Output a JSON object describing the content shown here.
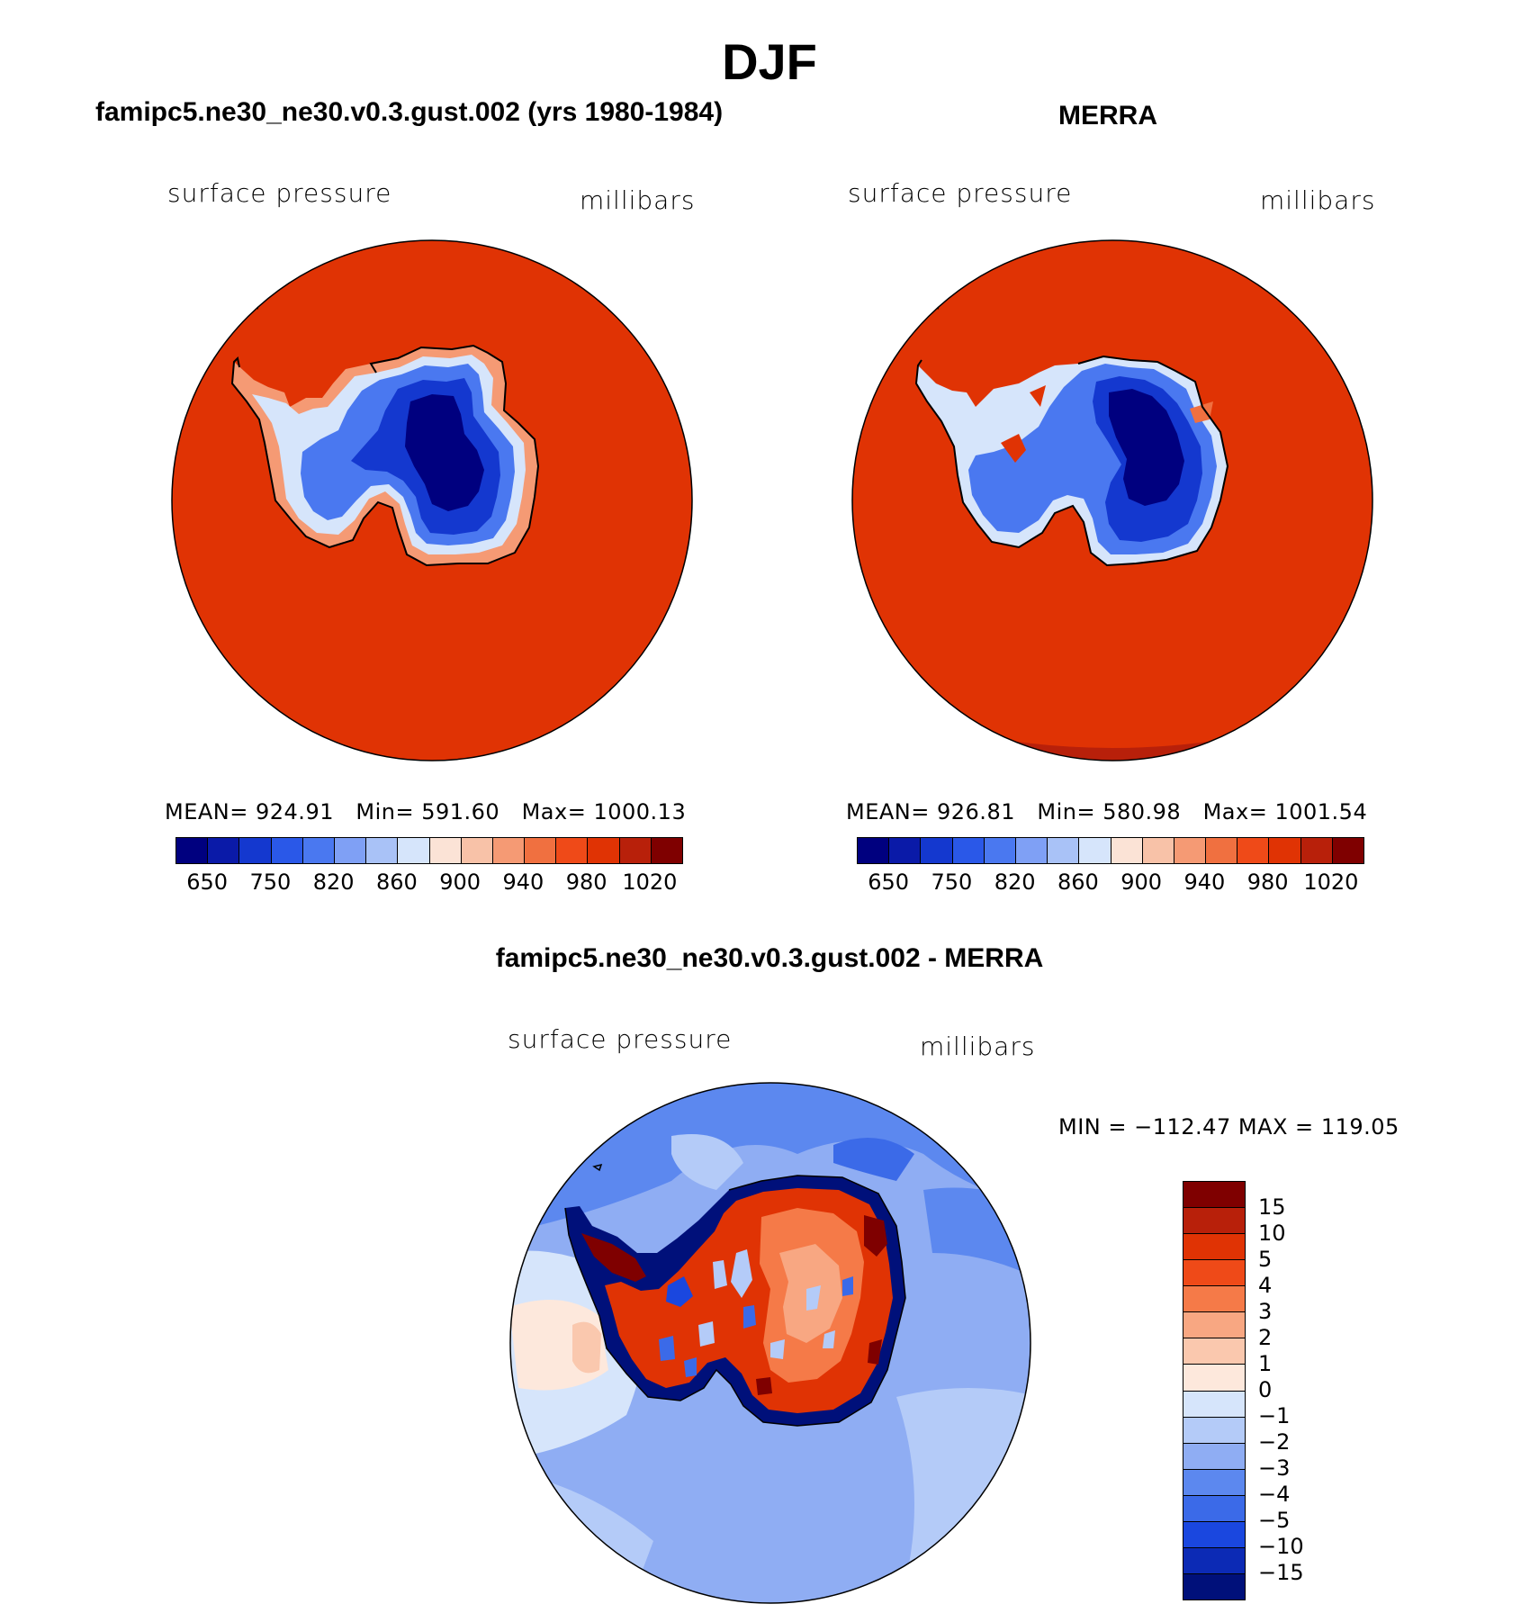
{
  "season": "DJF",
  "panels": [
    {
      "title": "famipc5.ne30_ne30.v0.3.gust.002 (yrs 1980-1984)",
      "variable": "surface pressure",
      "units": "millibars",
      "stats": {
        "mean": "924.91",
        "min": "591.60",
        "max": "1000.13"
      },
      "stats_labels": {
        "mean": "MEAN=",
        "min": "Min=",
        "max": "Max="
      },
      "colorbar_ticks": [
        "650",
        "750",
        "820",
        "860",
        "900",
        "940",
        "980",
        "1020"
      ]
    },
    {
      "title": "MERRA",
      "variable": "surface pressure",
      "units": "millibars",
      "stats": {
        "mean": "926.81",
        "min": "580.98",
        "max": "1001.54"
      },
      "stats_labels": {
        "mean": "MEAN=",
        "min": "Min=",
        "max": "Max="
      },
      "colorbar_ticks": [
        "650",
        "750",
        "820",
        "860",
        "900",
        "940",
        "980",
        "1020"
      ]
    }
  ],
  "diff_panel": {
    "title": "famipc5.ne30_ne30.v0.3.gust.002 - MERRA",
    "variable": "surface pressure",
    "units": "millibars",
    "min_label": "MIN =",
    "min_value": "−112.47",
    "max_label": "MAX =",
    "max_value": "119.05",
    "colorbar_ticks": [
      "15",
      "10",
      "5",
      "4",
      "3",
      "2",
      "1",
      "0",
      "−1",
      "−2",
      "−3",
      "−4",
      "−5",
      "−10",
      "−15"
    ]
  },
  "colors": {
    "abs_scale": [
      "#00007f",
      "#0a1aa8",
      "#1438cf",
      "#2a58e8",
      "#4a78f0",
      "#7fa0f5",
      "#a9c2f7",
      "#d6e5fb",
      "#fbe3d6",
      "#f8c2a8",
      "#f59a74",
      "#f07040",
      "#ef4a18",
      "#e03304",
      "#b8200a",
      "#7f0000"
    ],
    "diff_scale": [
      "#7f0000",
      "#b8200a",
      "#e03304",
      "#ef4a18",
      "#f57a48",
      "#f8a782",
      "#fac8ae",
      "#fde8dc",
      "#d6e5fb",
      "#b4cbf8",
      "#8fadf3",
      "#5c88ef",
      "#3b6ae8",
      "#1a47df",
      "#0c2ab5",
      "#00107a"
    ]
  }
}
